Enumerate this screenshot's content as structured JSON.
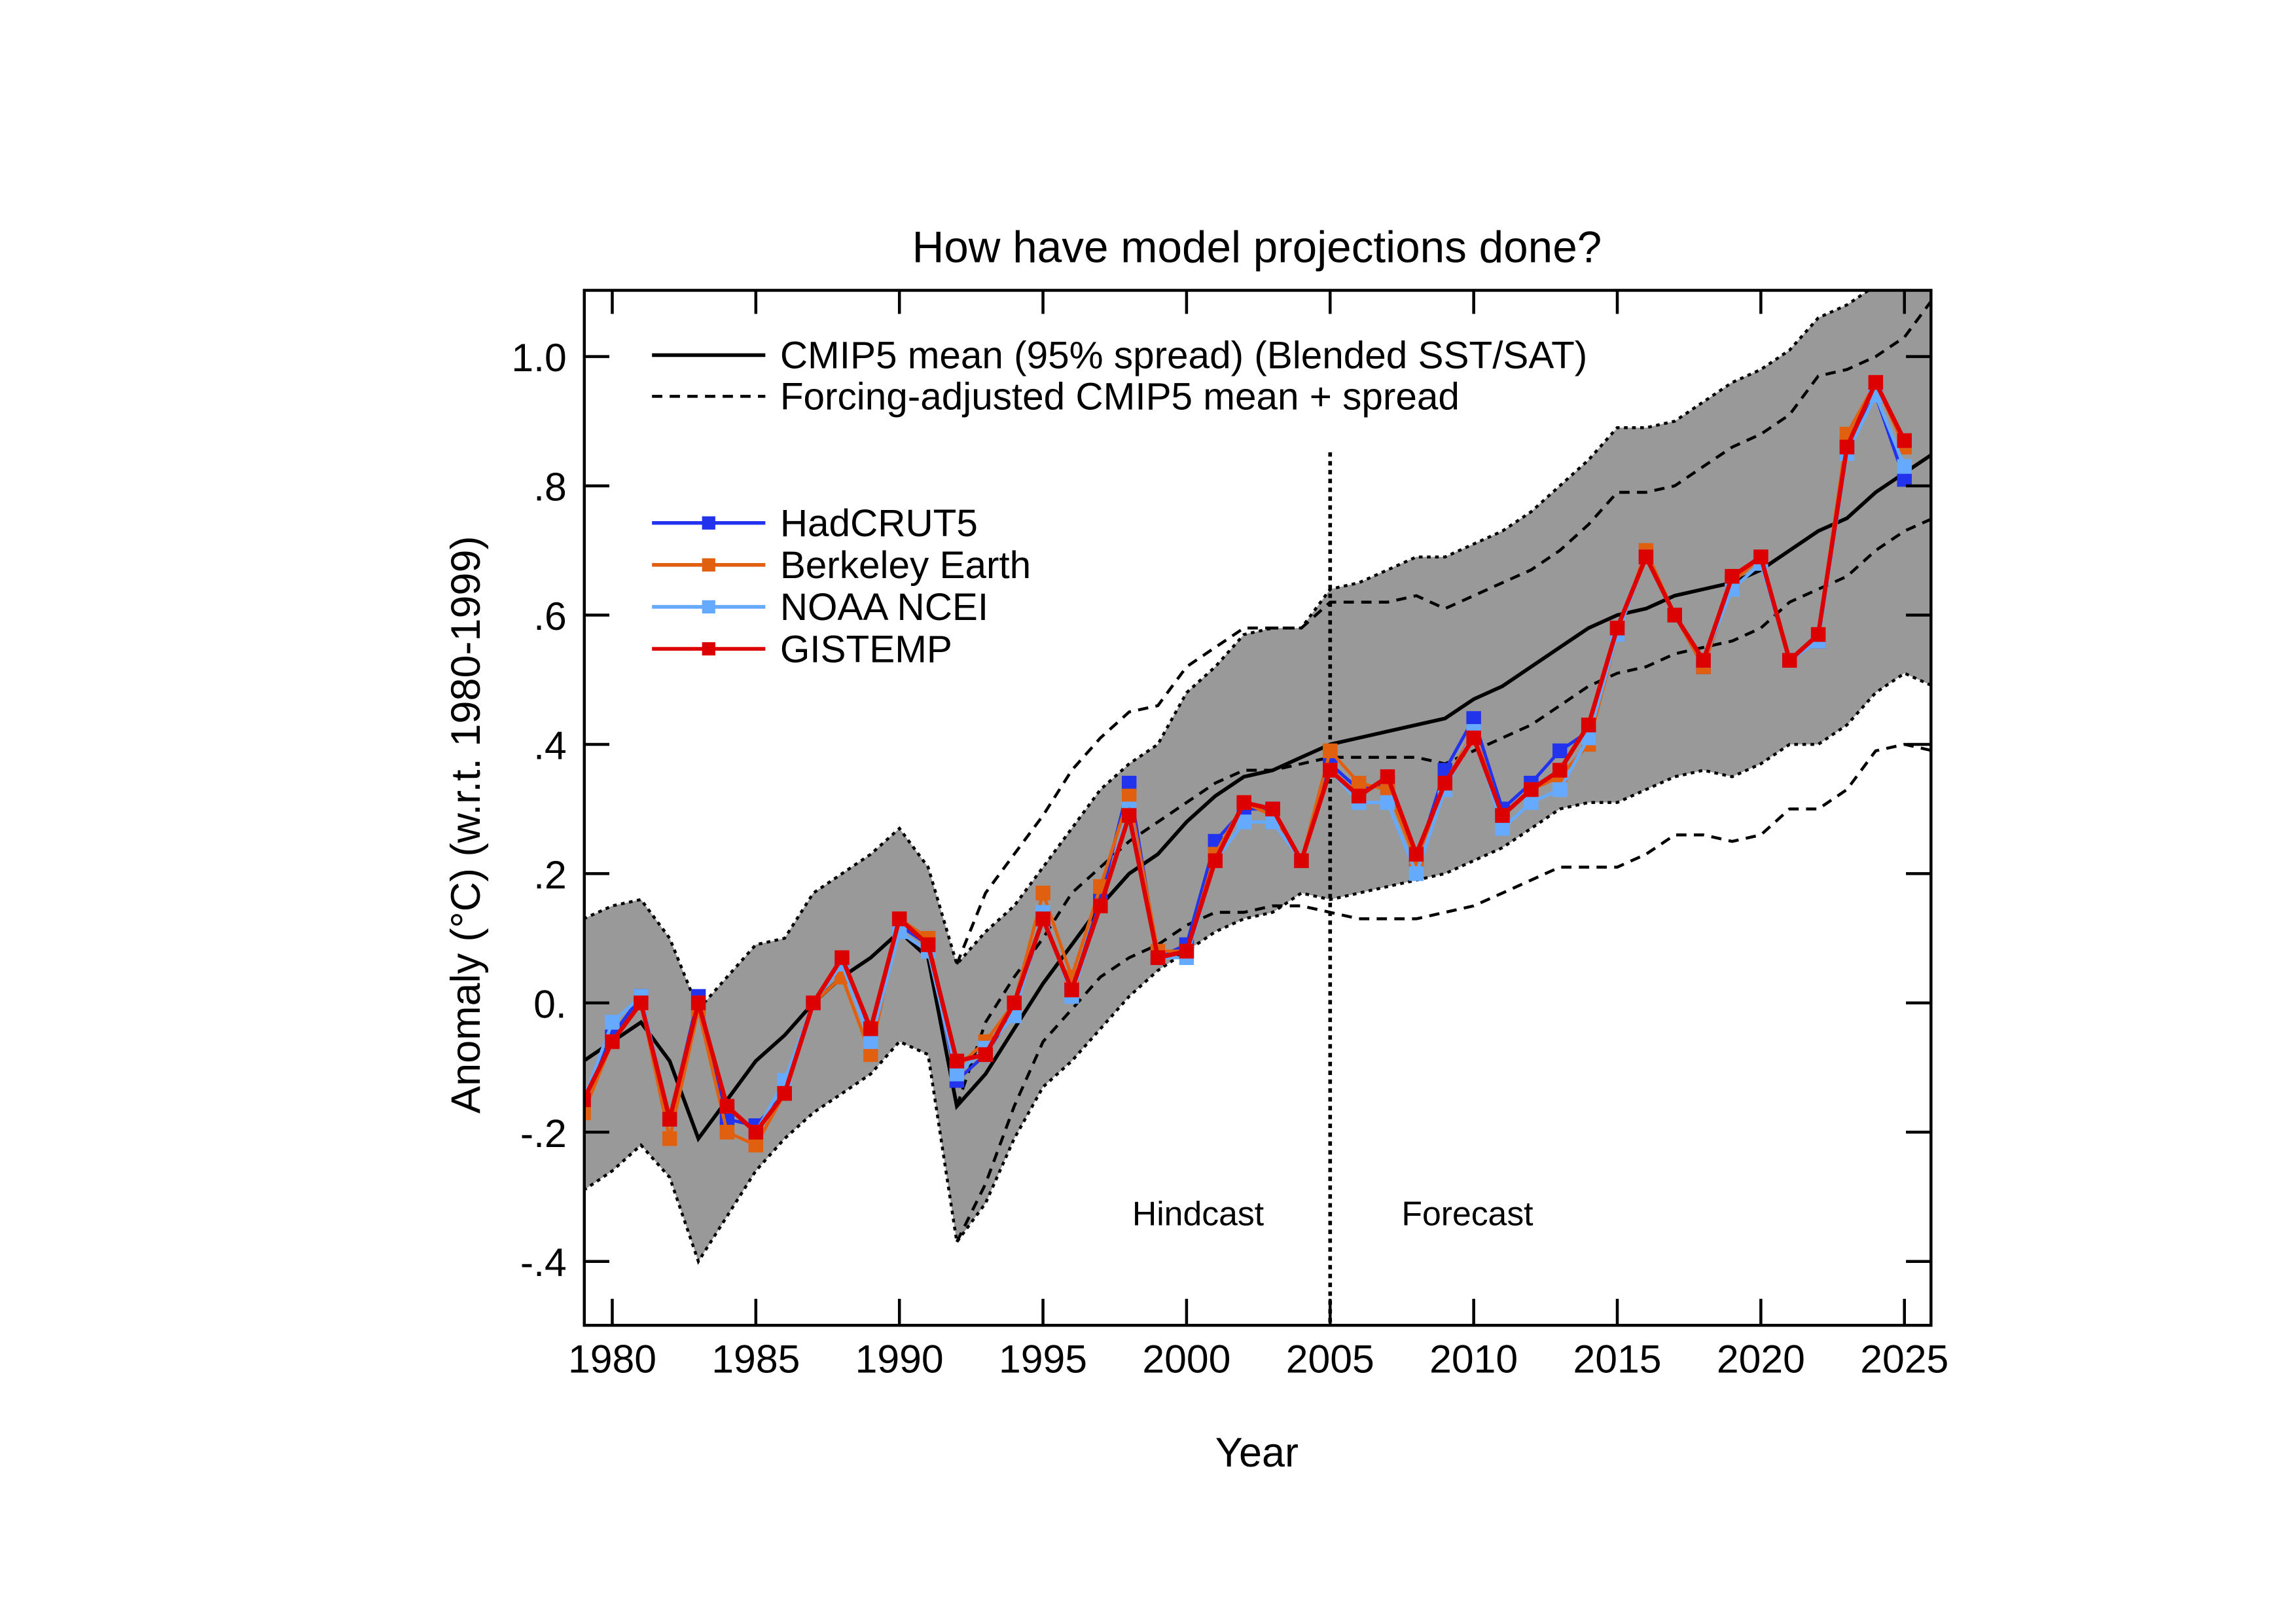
{
  "chart_data": {
    "type": "line",
    "title": "How have model projections done?",
    "xlabel": "Year",
    "ylabel": "Anomaly (°C) (w.r.t. 1980-1999)",
    "xlim": [
      1979,
      2026
    ],
    "ylim": [
      -0.5,
      1.1
    ],
    "xticks": [
      1980,
      1985,
      1990,
      1995,
      2000,
      2005,
      2010,
      2015,
      2020,
      2025
    ],
    "yticks": [
      -0.4,
      -0.2,
      0.0,
      0.2,
      0.4,
      0.6,
      0.8,
      1.0
    ],
    "ytick_labels": [
      "-.4",
      "-.2",
      "0.",
      ".2",
      ".4",
      ".6",
      ".8",
      "1.0"
    ],
    "grid": false,
    "legend_position": "top-left",
    "annotations": {
      "hindcast": "Hindcast",
      "forecast": "Forecast",
      "divider_year": 2005
    },
    "band_color": "#999999",
    "model": {
      "years_start": 1979,
      "mean_label": "CMIP5 mean (95% spread) (Blended SST/SAT)",
      "mean": [
        -0.09,
        -0.06,
        -0.03,
        -0.09,
        -0.21,
        -0.15,
        -0.09,
        -0.05,
        0.0,
        0.04,
        0.07,
        0.11,
        0.07,
        -0.16,
        -0.11,
        -0.04,
        0.03,
        0.09,
        0.15,
        0.2,
        0.23,
        0.28,
        0.32,
        0.35,
        0.36,
        0.38,
        0.4,
        0.41,
        0.42,
        0.43,
        0.44,
        0.47,
        0.49,
        0.52,
        0.55,
        0.58,
        0.6,
        0.61,
        0.63,
        0.64,
        0.65,
        0.67,
        0.7,
        0.73,
        0.75,
        0.79,
        0.82,
        0.85
      ],
      "upper": [
        0.13,
        0.15,
        0.16,
        0.1,
        -0.01,
        0.04,
        0.09,
        0.1,
        0.17,
        0.2,
        0.23,
        0.27,
        0.21,
        0.06,
        0.11,
        0.15,
        0.21,
        0.27,
        0.33,
        0.37,
        0.4,
        0.48,
        0.52,
        0.57,
        0.58,
        0.58,
        0.64,
        0.65,
        0.67,
        0.69,
        0.69,
        0.71,
        0.73,
        0.76,
        0.8,
        0.84,
        0.89,
        0.89,
        0.9,
        0.93,
        0.96,
        0.98,
        1.01,
        1.06,
        1.08,
        1.11,
        1.12,
        1.14
      ],
      "lower": [
        -0.29,
        -0.26,
        -0.22,
        -0.27,
        -0.4,
        -0.33,
        -0.26,
        -0.21,
        -0.17,
        -0.14,
        -0.11,
        -0.06,
        -0.08,
        -0.37,
        -0.31,
        -0.21,
        -0.13,
        -0.09,
        -0.04,
        0.01,
        0.05,
        0.08,
        0.11,
        0.13,
        0.14,
        0.17,
        0.16,
        0.17,
        0.18,
        0.19,
        0.2,
        0.22,
        0.24,
        0.27,
        0.3,
        0.31,
        0.31,
        0.33,
        0.35,
        0.36,
        0.35,
        0.37,
        0.4,
        0.4,
        0.43,
        0.48,
        0.51,
        0.49
      ]
    },
    "adjusted": {
      "years_start": 1992,
      "label": "Forcing-adjusted CMIP5 mean + spread",
      "mean": [
        -0.16,
        -0.03,
        0.04,
        0.1,
        0.17,
        0.21,
        0.25,
        0.28,
        0.31,
        0.34,
        0.36,
        0.36,
        0.37,
        0.38,
        0.38,
        0.38,
        0.38,
        0.37,
        0.39,
        0.41,
        0.43,
        0.46,
        0.49,
        0.51,
        0.52,
        0.54,
        0.55,
        0.56,
        0.58,
        0.62,
        0.64,
        0.66,
        0.7,
        0.73,
        0.75
      ],
      "upper": [
        0.06,
        0.17,
        0.23,
        0.29,
        0.36,
        0.41,
        0.45,
        0.46,
        0.52,
        0.55,
        0.58,
        0.58,
        0.58,
        0.62,
        0.62,
        0.62,
        0.63,
        0.61,
        0.63,
        0.65,
        0.67,
        0.7,
        0.74,
        0.79,
        0.79,
        0.8,
        0.83,
        0.86,
        0.88,
        0.91,
        0.97,
        0.98,
        1.0,
        1.03,
        1.09
      ],
      "lower": [
        -0.37,
        -0.28,
        -0.16,
        -0.06,
        -0.01,
        0.04,
        0.07,
        0.09,
        0.12,
        0.14,
        0.14,
        0.15,
        0.15,
        0.14,
        0.13,
        0.13,
        0.13,
        0.14,
        0.15,
        0.17,
        0.19,
        0.21,
        0.21,
        0.21,
        0.23,
        0.26,
        0.26,
        0.25,
        0.26,
        0.3,
        0.3,
        0.33,
        0.39,
        0.4,
        0.39
      ]
    },
    "obs_years_start": 1979,
    "series": [
      {
        "name": "HadCRUT5",
        "color": "#2233ee",
        "values": [
          -0.15,
          -0.05,
          0.01,
          -0.18,
          0.01,
          -0.18,
          -0.19,
          -0.14,
          0.0,
          0.06,
          -0.05,
          0.12,
          0.09,
          -0.12,
          -0.08,
          -0.01,
          0.13,
          0.02,
          0.16,
          0.34,
          0.07,
          0.09,
          0.25,
          0.3,
          0.3,
          0.22,
          0.37,
          0.33,
          0.34,
          0.22,
          0.36,
          0.44,
          0.3,
          0.34,
          0.39,
          0.42,
          0.58,
          0.69,
          0.6,
          0.52,
          0.65,
          0.69,
          0.53,
          0.56,
          0.86,
          0.94,
          0.81
        ]
      },
      {
        "name": "Berkeley Earth",
        "color": "#e06010",
        "values": [
          -0.17,
          -0.06,
          0.0,
          -0.21,
          -0.01,
          -0.2,
          -0.22,
          -0.14,
          0.0,
          0.04,
          -0.08,
          0.13,
          0.1,
          -0.1,
          -0.06,
          0.0,
          0.17,
          0.04,
          0.18,
          0.32,
          0.08,
          0.08,
          0.23,
          0.31,
          0.29,
          0.22,
          0.39,
          0.34,
          0.33,
          0.22,
          0.34,
          0.42,
          0.29,
          0.33,
          0.35,
          0.4,
          0.57,
          0.7,
          0.6,
          0.52,
          0.65,
          0.69,
          0.53,
          0.57,
          0.88,
          0.96,
          0.86
        ]
      },
      {
        "name": "NOAA NCEI",
        "color": "#66aaff",
        "values": [
          -0.15,
          -0.03,
          0.01,
          -0.18,
          0.0,
          -0.16,
          -0.2,
          -0.12,
          0.0,
          0.06,
          -0.06,
          0.11,
          0.08,
          -0.11,
          -0.07,
          -0.02,
          0.14,
          0.01,
          0.15,
          0.3,
          0.07,
          0.07,
          0.22,
          0.28,
          0.28,
          0.22,
          0.36,
          0.31,
          0.31,
          0.2,
          0.33,
          0.42,
          0.27,
          0.31,
          0.33,
          0.41,
          0.57,
          0.69,
          0.6,
          0.53,
          0.64,
          0.68,
          0.53,
          0.56,
          0.85,
          0.94,
          0.83
        ]
      },
      {
        "name": "GISTEMP",
        "color": "#dd0000",
        "values": [
          -0.15,
          -0.06,
          0.0,
          -0.18,
          0.0,
          -0.16,
          -0.2,
          -0.14,
          0.0,
          0.07,
          -0.04,
          0.13,
          0.09,
          -0.09,
          -0.08,
          0.0,
          0.13,
          0.02,
          0.15,
          0.29,
          0.07,
          0.08,
          0.22,
          0.31,
          0.3,
          0.22,
          0.36,
          0.32,
          0.35,
          0.23,
          0.34,
          0.41,
          0.29,
          0.33,
          0.36,
          0.43,
          0.58,
          0.69,
          0.6,
          0.53,
          0.66,
          0.69,
          0.53,
          0.57,
          0.86,
          0.96,
          0.87
        ]
      }
    ]
  }
}
